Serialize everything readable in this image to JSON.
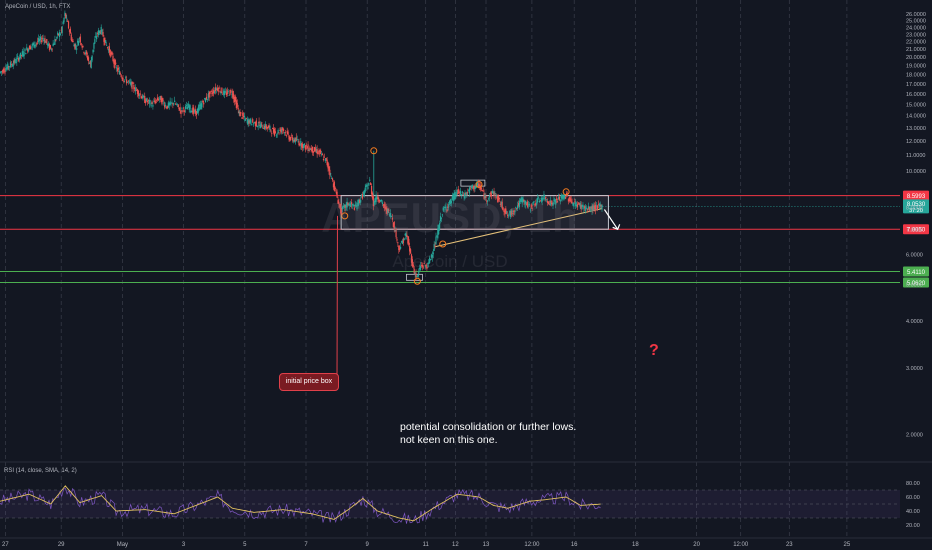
{
  "header": {
    "ticker": "ApeCoin / USD, 1h, FTX",
    "watermark_symbol": "APEUSD, 1h",
    "watermark_name": "ApeCoin / USD"
  },
  "annotations": {
    "box_label": "initial price box",
    "note_line1": "potential consolidation or further lows.",
    "note_line2": "not keen on this one.",
    "question": "?"
  },
  "rsi": {
    "label": "RSI (14, close, SMA, 14, 2)",
    "ticks": [
      "80.00",
      "60.00",
      "40.00",
      "20.00"
    ],
    "ticks_val": [
      80,
      60,
      40,
      20
    ],
    "upper_band": 70,
    "lower_band": 30
  },
  "colors": {
    "background": "#131722",
    "up_candle": "#26a69a",
    "down_candle": "#ef5350",
    "resistance_line": "#f23645",
    "support_line": "#4caf50",
    "rsi_line": "#7e57c2",
    "rsi_sma": "#e0c060",
    "box_border": "#c5c8d0",
    "trendline": "#e6c27a",
    "marker_circle": "#f57c20"
  },
  "chart_data": {
    "type": "candlestick",
    "title": "ApeCoin / USD, 1h, FTX",
    "y_scale": "log",
    "ylim": [
      1.8,
      27
    ],
    "y_ticks": [
      "26.0000",
      "25.0000",
      "24.0000",
      "23.0000",
      "22.0000",
      "21.0000",
      "20.0000",
      "19.0000",
      "18.0000",
      "17.0000",
      "16.0000",
      "15.0000",
      "14.0000",
      "13.0000",
      "12.0000",
      "11.0000",
      "10.0000",
      "8.0000",
      "7.0000",
      "6.0000",
      "5.0000",
      "4.0000",
      "3.0000",
      "2.0000"
    ],
    "y_ticks_val": [
      26,
      25,
      24,
      23,
      22,
      21,
      20,
      19,
      18,
      17,
      16,
      15,
      14,
      13,
      12,
      11,
      10,
      8,
      7,
      6,
      5,
      4,
      3,
      2
    ],
    "x_tick_labels": [
      "27",
      "29",
      "May",
      "3",
      "5",
      "7",
      "9",
      "11",
      "12",
      "13",
      "12:00",
      "16",
      "18",
      "20",
      "12:00",
      "23",
      "25"
    ],
    "x_tick_frac": [
      0.006,
      0.068,
      0.136,
      0.204,
      0.272,
      0.34,
      0.408,
      0.473,
      0.506,
      0.54,
      0.591,
      0.638,
      0.706,
      0.774,
      0.823,
      0.877,
      0.941
    ],
    "price_levels": [
      {
        "label": "8.5993",
        "value": 8.5993,
        "color": "#f23645"
      },
      {
        "label": "7.0050",
        "value": 7.005,
        "color": "#f23645"
      },
      {
        "label": "5.4110",
        "value": 5.411,
        "color": "#4caf50"
      },
      {
        "label": "5.0620",
        "value": 5.062,
        "color": "#4caf50"
      }
    ],
    "current_price": {
      "label": "8.0530",
      "countdown": "37:20",
      "value": 8.053
    },
    "close_path": [
      [
        0,
        18.2
      ],
      [
        4,
        19.4
      ],
      [
        8,
        21.2
      ],
      [
        10,
        21.8
      ],
      [
        12,
        22.5
      ],
      [
        14,
        21.0
      ],
      [
        16,
        22.8
      ],
      [
        17,
        23.4
      ],
      [
        18,
        26.0
      ],
      [
        19,
        24.0
      ],
      [
        20,
        22.0
      ],
      [
        21,
        21.2
      ],
      [
        22,
        22.6
      ],
      [
        23,
        21.0
      ],
      [
        24,
        20.2
      ],
      [
        25,
        19.0
      ],
      [
        26,
        21.8
      ],
      [
        27,
        23.2
      ],
      [
        28,
        23.6
      ],
      [
        29,
        22.0
      ],
      [
        30,
        21.0
      ],
      [
        31,
        20.0
      ],
      [
        32,
        18.8
      ],
      [
        34,
        17.6
      ],
      [
        36,
        17.0
      ],
      [
        38,
        16.2
      ],
      [
        40,
        15.4
      ],
      [
        42,
        15.0
      ],
      [
        44,
        15.6
      ],
      [
        46,
        14.8
      ],
      [
        48,
        15.2
      ],
      [
        50,
        14.4
      ],
      [
        52,
        14.8
      ],
      [
        54,
        14.2
      ],
      [
        56,
        15.2
      ],
      [
        58,
        16.0
      ],
      [
        60,
        16.6
      ],
      [
        62,
        16.0
      ],
      [
        64,
        16.2
      ],
      [
        66,
        14.2
      ],
      [
        68,
        13.6
      ],
      [
        70,
        13.4
      ],
      [
        72,
        13.2
      ],
      [
        74,
        13.0
      ],
      [
        76,
        12.6
      ],
      [
        78,
        12.9
      ],
      [
        80,
        12.2
      ],
      [
        82,
        12.0
      ],
      [
        84,
        11.6
      ],
      [
        86,
        11.4
      ],
      [
        88,
        11.2
      ],
      [
        90,
        10.6
      ],
      [
        92,
        9.2
      ],
      [
        94,
        7.8
      ],
      [
        96,
        8.2
      ],
      [
        98,
        8.0
      ],
      [
        100,
        8.6
      ],
      [
        102,
        9.4
      ],
      [
        103,
        8.2
      ],
      [
        104,
        8.6
      ],
      [
        106,
        8.0
      ],
      [
        108,
        7.6
      ],
      [
        110,
        6.2
      ],
      [
        112,
        6.8
      ],
      [
        114,
        5.5
      ],
      [
        115,
        5.2
      ],
      [
        116,
        5.6
      ],
      [
        118,
        5.6
      ],
      [
        120,
        6.4
      ],
      [
        122,
        7.8
      ],
      [
        124,
        8.2
      ],
      [
        126,
        8.8
      ],
      [
        128,
        8.6
      ],
      [
        130,
        9.0
      ],
      [
        132,
        9.2
      ],
      [
        134,
        8.4
      ],
      [
        136,
        8.8
      ],
      [
        138,
        8.2
      ],
      [
        140,
        7.6
      ],
      [
        142,
        7.9
      ],
      [
        144,
        8.4
      ],
      [
        146,
        8.0
      ],
      [
        148,
        8.3
      ],
      [
        150,
        8.5
      ],
      [
        152,
        8.2
      ],
      [
        154,
        8.4
      ],
      [
        156,
        8.6
      ],
      [
        158,
        8.2
      ],
      [
        160,
        8.1
      ],
      [
        162,
        7.9
      ],
      [
        164,
        8.0
      ],
      [
        166,
        8.05
      ]
    ],
    "rsi_path": [
      [
        0,
        54
      ],
      [
        8,
        64
      ],
      [
        14,
        50
      ],
      [
        18,
        76
      ],
      [
        22,
        52
      ],
      [
        28,
        62
      ],
      [
        32,
        40
      ],
      [
        40,
        42
      ],
      [
        48,
        36
      ],
      [
        56,
        52
      ],
      [
        60,
        60
      ],
      [
        64,
        44
      ],
      [
        70,
        38
      ],
      [
        78,
        42
      ],
      [
        86,
        36
      ],
      [
        92,
        28
      ],
      [
        96,
        42
      ],
      [
        100,
        58
      ],
      [
        104,
        40
      ],
      [
        110,
        30
      ],
      [
        114,
        26
      ],
      [
        120,
        46
      ],
      [
        126,
        64
      ],
      [
        132,
        60
      ],
      [
        136,
        48
      ],
      [
        140,
        44
      ],
      [
        146,
        54
      ],
      [
        150,
        56
      ],
      [
        156,
        60
      ],
      [
        160,
        48
      ],
      [
        166,
        50
      ]
    ],
    "events": [
      {
        "label": "initial price box",
        "t0": 94,
        "t1": 166,
        "high": 8.5993,
        "low": 7.005
      },
      {
        "label": "swing low",
        "t": 115,
        "value": 5.1
      },
      {
        "label": "swing high",
        "t": 103,
        "value": 11.3
      },
      {
        "label": "top",
        "t": 132,
        "value": 9.2
      },
      {
        "label": "bottom marker",
        "t": 95,
        "value": 7.6
      },
      {
        "label": "retest",
        "t": 122,
        "value": 6.4
      },
      {
        "label": "lower high",
        "t": 156,
        "value": 8.8
      }
    ],
    "projection": {
      "from": [
        166,
        7.9
      ],
      "to": [
        168,
        7.0
      ]
    }
  }
}
